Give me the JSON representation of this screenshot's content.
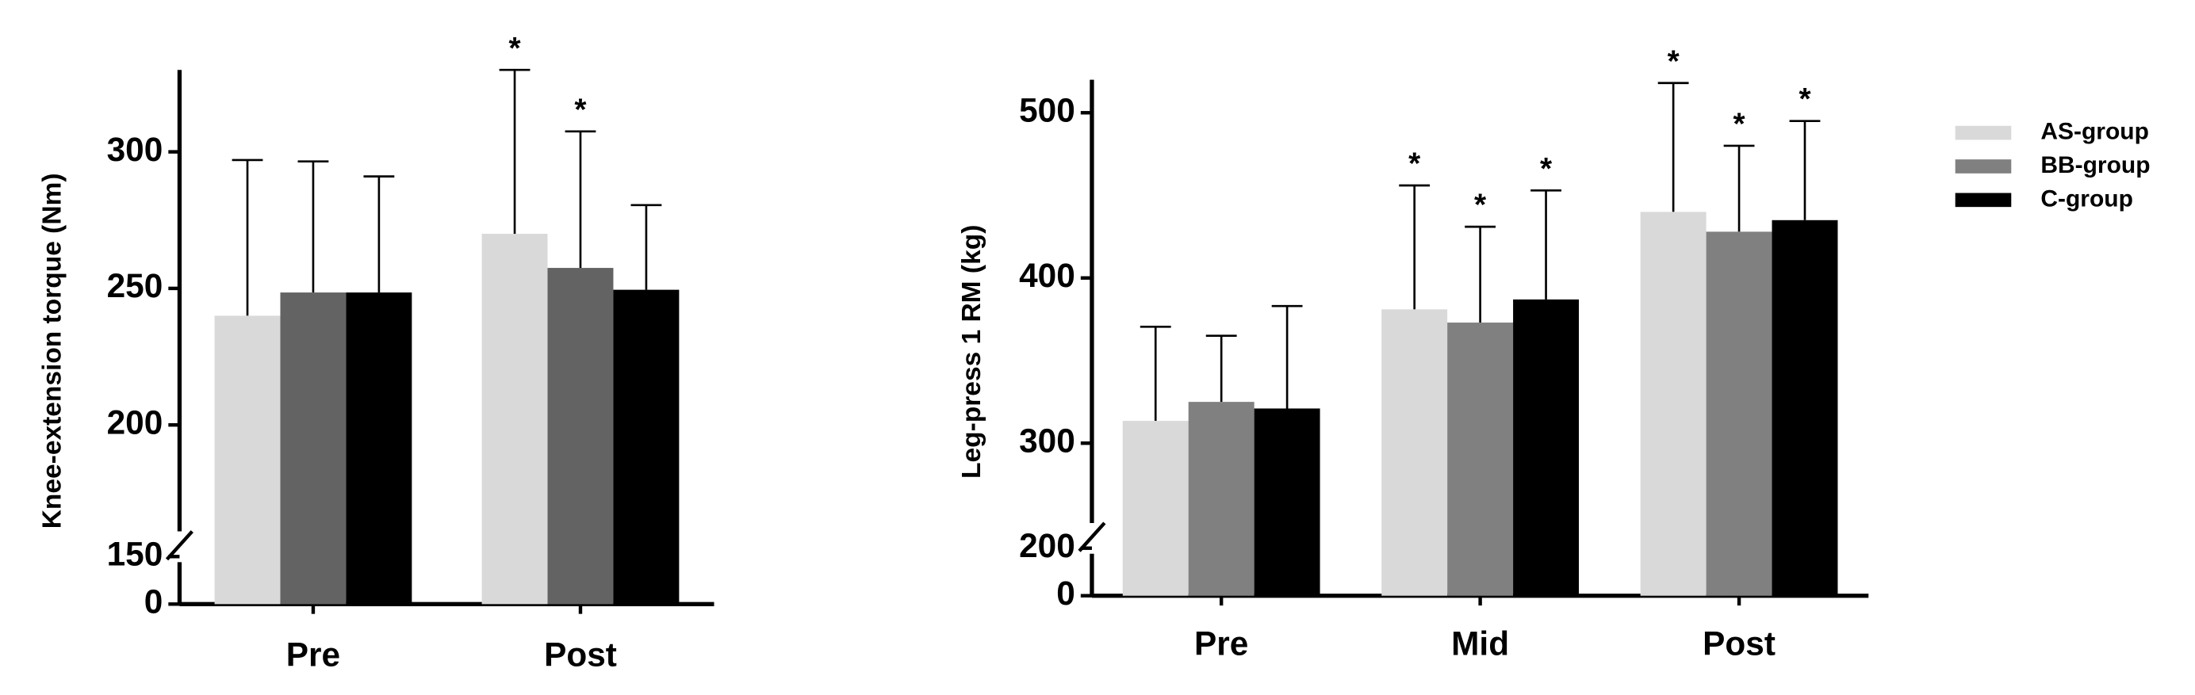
{
  "chart_data": [
    {
      "type": "bar",
      "ylabel": "Knee-extension torque (Nm)",
      "categories": [
        "Pre",
        "Post"
      ],
      "ylim": [
        0,
        330
      ],
      "ybreak": [
        150,
        160
      ],
      "yticks": [
        0,
        150,
        200,
        250,
        300
      ],
      "series": [
        {
          "color": "#d9d9d9",
          "values": [
            240,
            270
          ],
          "errors": [
            57,
            60
          ],
          "markers": [
            null,
            "*"
          ]
        },
        {
          "color": "#636363",
          "values": [
            248.5,
            257.5
          ],
          "errors": [
            48,
            50
          ],
          "markers": [
            null,
            "*"
          ]
        },
        {
          "color": "#000000",
          "values": [
            248.5,
            249.5
          ],
          "errors": [
            42.5,
            31
          ],
          "markers": [
            null,
            null
          ]
        }
      ]
    },
    {
      "type": "bar",
      "ylabel": "Leg-press 1 RM (kg)",
      "categories": [
        "Pre",
        "Mid",
        "Post"
      ],
      "ylim": [
        0,
        520
      ],
      "ybreak": [
        200,
        250
      ],
      "yticks": [
        0,
        200,
        300,
        400,
        500
      ],
      "legend": "right-outside",
      "series": [
        {
          "name": "AS-group",
          "color": "#d9d9d9",
          "values": [
            313.5,
            381,
            440
          ],
          "errors": [
            57,
            75,
            78
          ],
          "markers": [
            null,
            "*",
            "*"
          ]
        },
        {
          "name": "BB-group",
          "color": "#808080",
          "values": [
            325,
            373,
            428
          ],
          "errors": [
            40,
            58,
            52
          ],
          "markers": [
            null,
            "*",
            "*"
          ]
        },
        {
          "name": "C-group",
          "color": "#000000",
          "values": [
            321,
            387,
            435
          ],
          "errors": [
            62,
            66,
            60
          ],
          "markers": [
            null,
            "*",
            "*"
          ]
        }
      ]
    }
  ]
}
